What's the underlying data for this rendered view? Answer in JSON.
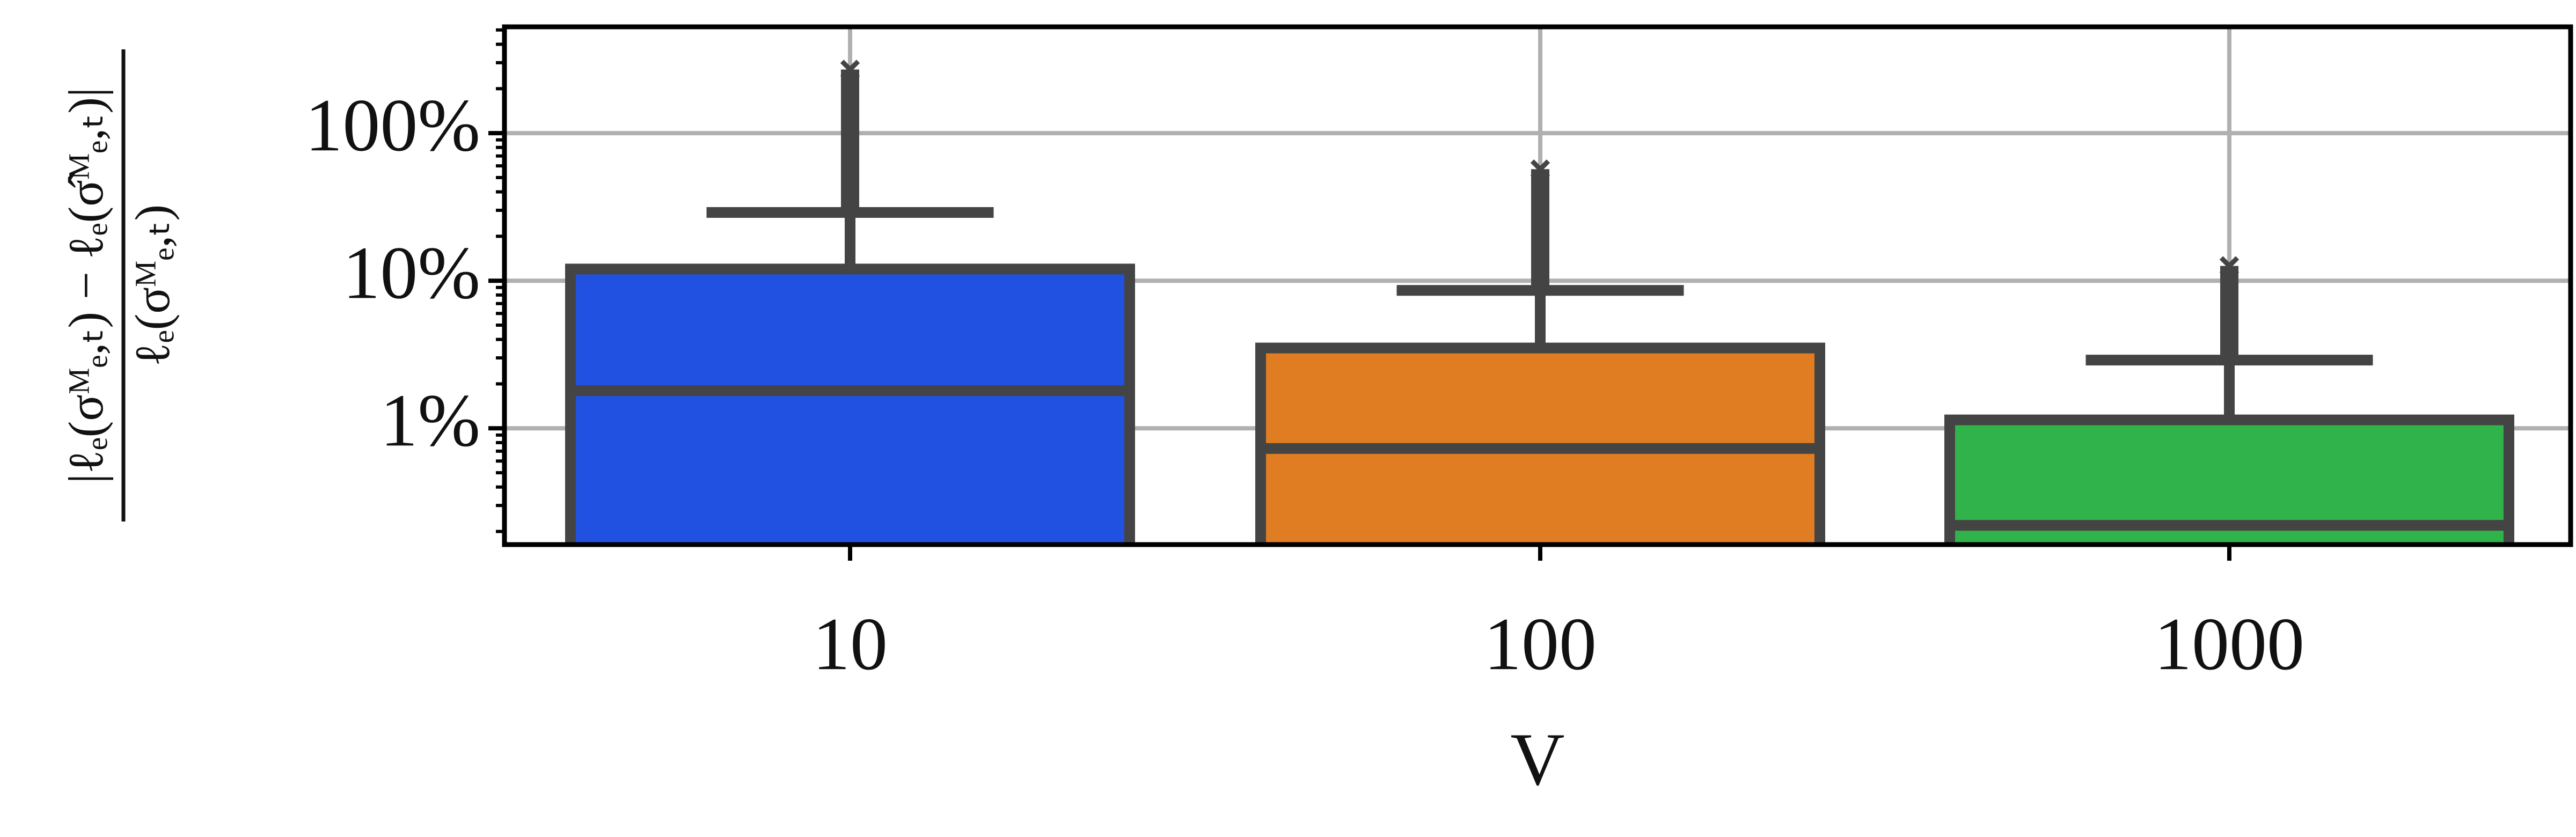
{
  "chart_data": {
    "type": "box",
    "x_label": "V",
    "y_label": {
      "numerator": "|ℓₑ(σᴹₑ,ₜ) − ℓₑ(σ̂ᴹₑ,ₜ)|",
      "denominator": "ℓₑ(σᴹₑ,ₜ)"
    },
    "categories": [
      "10",
      "100",
      "1000"
    ],
    "boxes": [
      {
        "color": "#2151e0",
        "median": 1.8,
        "q3": 12,
        "whisker_high": 29,
        "flier_low": 30,
        "flier_high": 270
      },
      {
        "color": "#e07c22",
        "median": 0.73,
        "q3": 3.5,
        "whisker_high": 8.6,
        "flier_low": 9,
        "flier_high": 57
      },
      {
        "color": "#2fb34a",
        "median": 0.22,
        "q3": 1.14,
        "whisker_high": 2.9,
        "flier_low": 3,
        "flier_high": 12.6
      }
    ],
    "edge_color": "#444444",
    "log_y": true,
    "ylim": [
      0.163,
      525
    ],
    "yticks": [
      {
        "value": 1,
        "label": "1%"
      },
      {
        "value": 10,
        "label": "10%"
      },
      {
        "value": 100,
        "label": "100%"
      }
    ],
    "yticks_minor": [
      0.2,
      0.3,
      0.4,
      0.5,
      0.6,
      0.7,
      0.8,
      0.9,
      2,
      3,
      4,
      5,
      6,
      7,
      8,
      9,
      20,
      30,
      40,
      50,
      60,
      70,
      80,
      90,
      200,
      300,
      400,
      500
    ],
    "grid": true
  }
}
